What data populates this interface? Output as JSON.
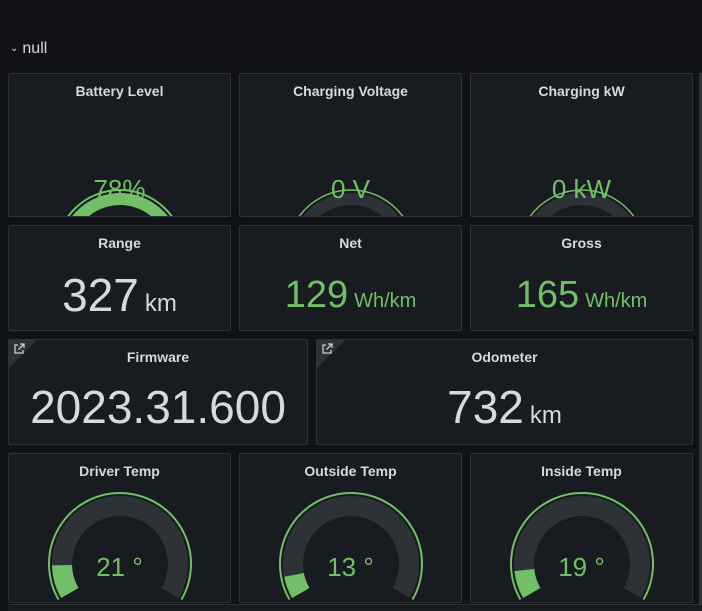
{
  "row": {
    "title": "null"
  },
  "colors": {
    "green": "#73bf69",
    "yellow": "#fade2a",
    "red": "#f2495c",
    "track": "#2c3235",
    "text_white": "#d8d9da"
  },
  "panels": {
    "battery": {
      "title": "Battery Level",
      "value": "78%",
      "percent": 0.78
    },
    "charging_voltage": {
      "title": "Charging Voltage",
      "value": "0 V",
      "percent": 0
    },
    "charging_kw": {
      "title": "Charging kW",
      "value": "0 kW",
      "percent": 0
    },
    "range": {
      "title": "Range",
      "value": "327",
      "unit": "km"
    },
    "net": {
      "title": "Net",
      "value": "129",
      "unit": "Wh/km"
    },
    "gross": {
      "title": "Gross",
      "value": "165",
      "unit": "Wh/km"
    },
    "firmware": {
      "title": "Firmware",
      "value": "2023.31.600"
    },
    "odometer": {
      "title": "Odometer",
      "value": "732",
      "unit": "km"
    },
    "driver_temp": {
      "title": "Driver Temp",
      "value": "21 °",
      "percent": 0.12
    },
    "outside_temp": {
      "title": "Outside Temp",
      "value": "13 °",
      "percent": 0.08
    },
    "inside_temp": {
      "title": "Inside Temp",
      "value": "19 °",
      "percent": 0.1
    }
  }
}
